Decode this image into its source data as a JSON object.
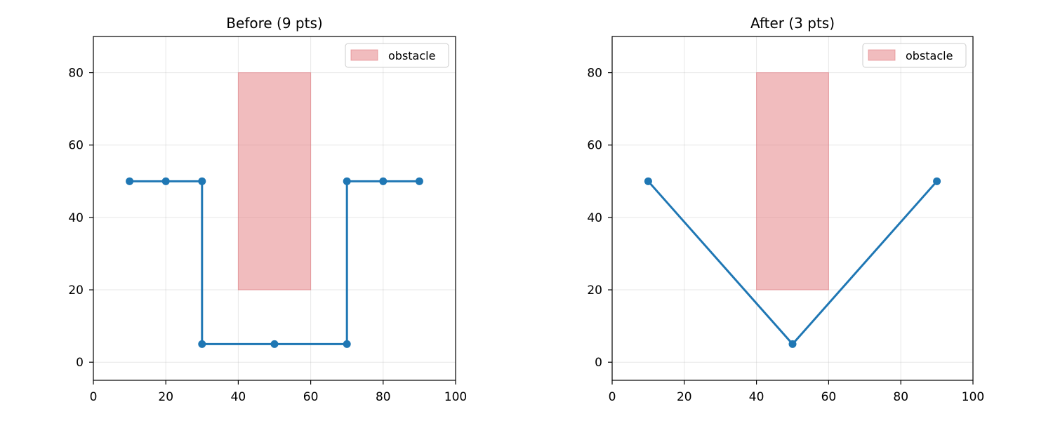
{
  "chart_data": [
    {
      "type": "line",
      "title": "Before (9 pts)",
      "xlabel": "",
      "ylabel": "",
      "xlim": [
        0,
        100
      ],
      "ylim": [
        -5,
        90
      ],
      "xticks": [
        0,
        20,
        40,
        60,
        80,
        100
      ],
      "yticks": [
        0,
        20,
        40,
        60,
        80
      ],
      "grid": true,
      "legend_position": "top-right",
      "legend": [
        {
          "label": "obstacle",
          "color": "#e37a7e"
        }
      ],
      "obstacle": {
        "x0": 40,
        "x1": 60,
        "y0": 20,
        "y1": 80,
        "color": "#e37a7e"
      },
      "series": [
        {
          "color": "#1f77b4",
          "x": [
            10,
            20,
            30,
            30,
            50,
            70,
            70,
            80,
            90
          ],
          "y": [
            50,
            50,
            50,
            5,
            5,
            5,
            50,
            50,
            50
          ]
        }
      ]
    },
    {
      "type": "line",
      "title": "After (3 pts)",
      "xlabel": "",
      "ylabel": "",
      "xlim": [
        0,
        100
      ],
      "ylim": [
        -5,
        90
      ],
      "xticks": [
        0,
        20,
        40,
        60,
        80,
        100
      ],
      "yticks": [
        0,
        20,
        40,
        60,
        80
      ],
      "grid": true,
      "legend_position": "top-right",
      "legend": [
        {
          "label": "obstacle",
          "color": "#e37a7e"
        }
      ],
      "obstacle": {
        "x0": 40,
        "x1": 60,
        "y0": 20,
        "y1": 80,
        "color": "#e37a7e"
      },
      "series": [
        {
          "color": "#1f77b4",
          "x": [
            10,
            50,
            90
          ],
          "y": [
            50,
            5,
            50
          ]
        }
      ]
    }
  ]
}
